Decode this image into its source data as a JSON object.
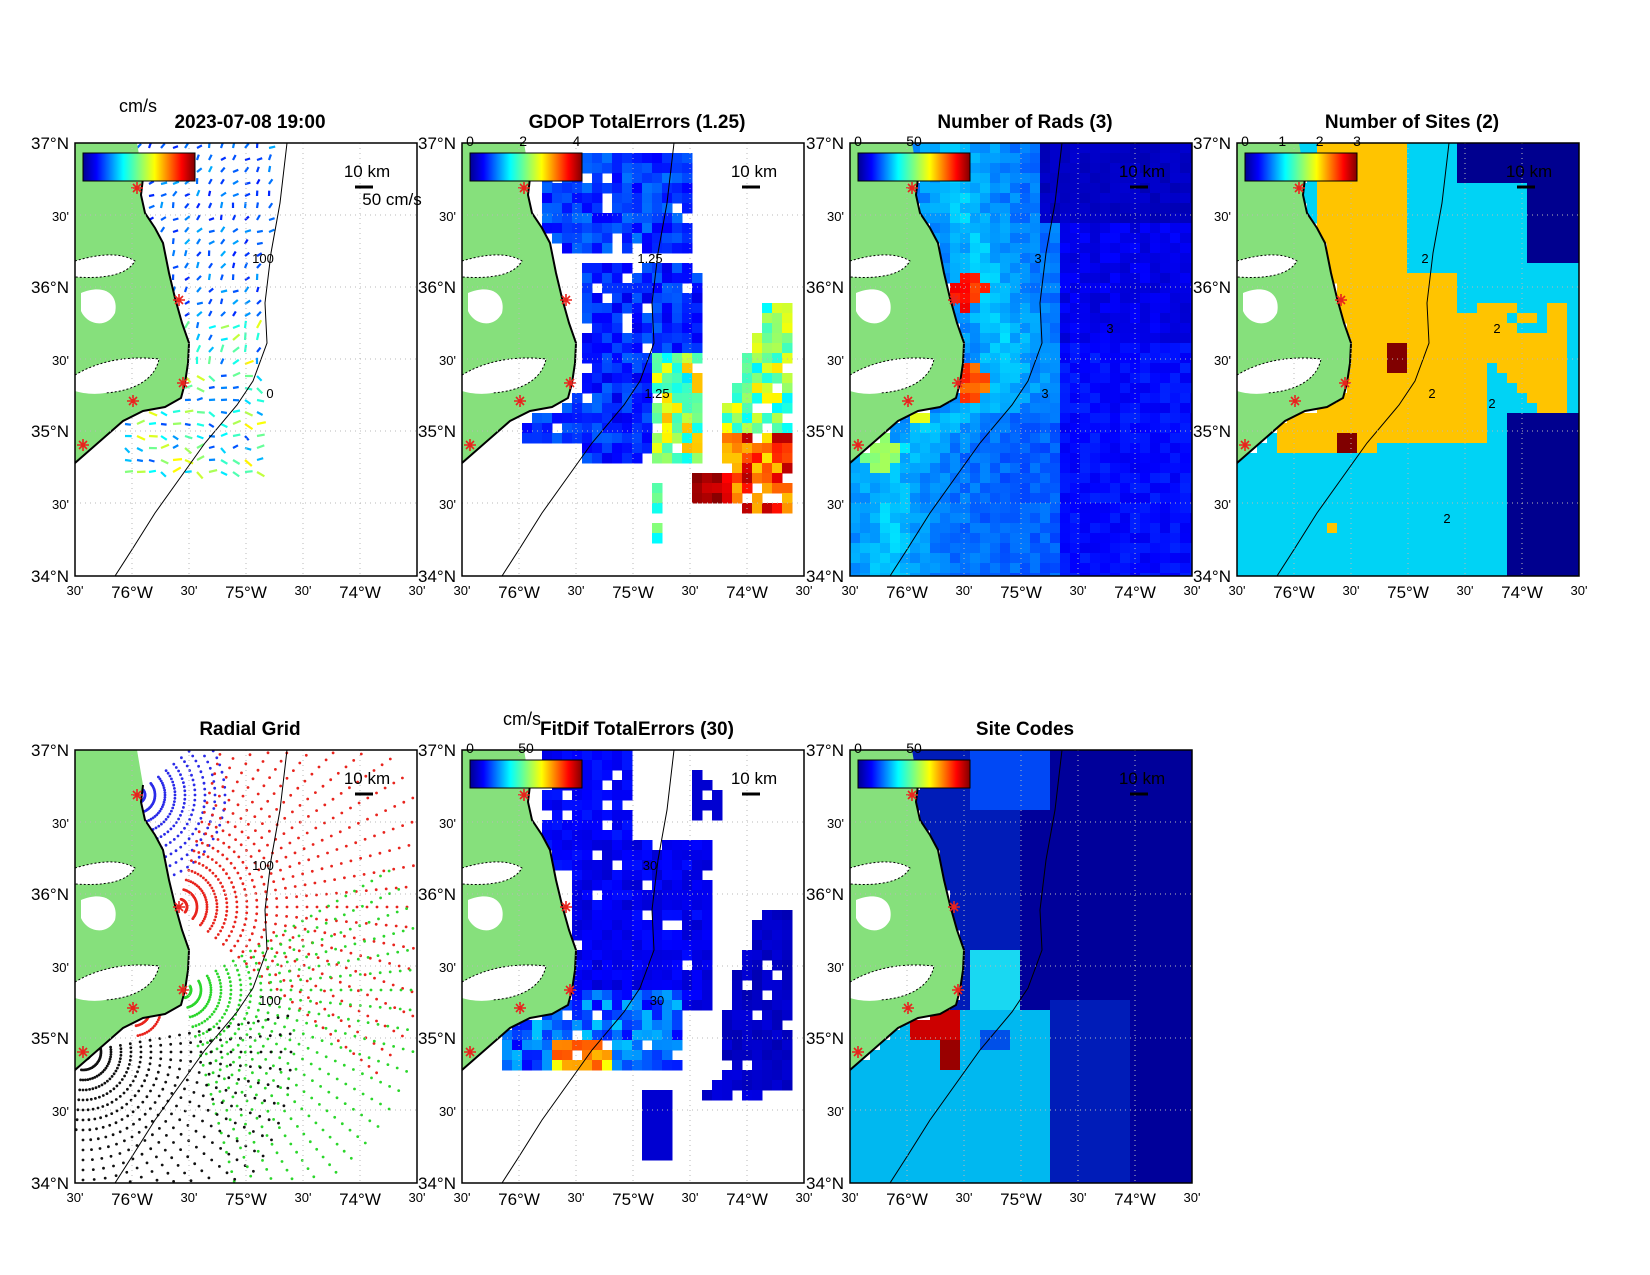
{
  "figure": {
    "timestamp": "2023-07-08 19:00",
    "colors": {
      "land": "#86e07c",
      "coast": "#000000",
      "site_marker": "#e8241d",
      "frame": "#000000"
    }
  },
  "axes": {
    "lat_labels": [
      "37°N",
      "30'",
      "36°N",
      "30'",
      "35°N",
      "30'",
      "34°N"
    ],
    "lon_labels": [
      "30'",
      "76°W",
      "30'",
      "75°W",
      "30'",
      "74°W",
      "30'"
    ],
    "scale_bar_label": "10 km"
  },
  "panels": [
    {
      "id": "total-vectors",
      "title": "",
      "colorbar": {
        "unit": "cm/s",
        "tick_labels": []
      },
      "vector_scale_label": "50 cm/s",
      "contour_labels": [
        "100",
        "0"
      ]
    },
    {
      "id": "gdop-errors",
      "title": "GDOP TotalErrors (1.25)",
      "colorbar": {
        "unit": "",
        "tick_labels": [
          "0",
          "2",
          "4"
        ]
      },
      "contour_labels": [
        "1.25",
        "1.25"
      ]
    },
    {
      "id": "number-of-rads",
      "title": "Number of Rads (3)",
      "colorbar": {
        "unit": "",
        "tick_labels": [
          "0",
          "50"
        ]
      },
      "contour_labels": [
        "3",
        "3",
        "3"
      ]
    },
    {
      "id": "number-of-sites",
      "title": "Number of Sites (2)",
      "colorbar": {
        "unit": "",
        "tick_labels": [
          "0",
          "1",
          "2",
          "3"
        ]
      },
      "contour_labels": [
        "2",
        "2",
        "2",
        "2",
        "2"
      ]
    },
    {
      "id": "radial-grid",
      "title": "Radial Grid",
      "contour_labels": [
        "100",
        "100"
      ]
    },
    {
      "id": "fitdif-errors",
      "title": "FitDif TotalErrors (30)",
      "colorbar": {
        "unit": "cm/s",
        "tick_labels": [
          "0",
          "50"
        ]
      },
      "contour_labels": [
        "30",
        "30"
      ]
    },
    {
      "id": "site-codes",
      "title": "Site Codes",
      "colorbar": {
        "unit": "",
        "tick_labels": [
          "0",
          "50"
        ]
      }
    }
  ]
}
